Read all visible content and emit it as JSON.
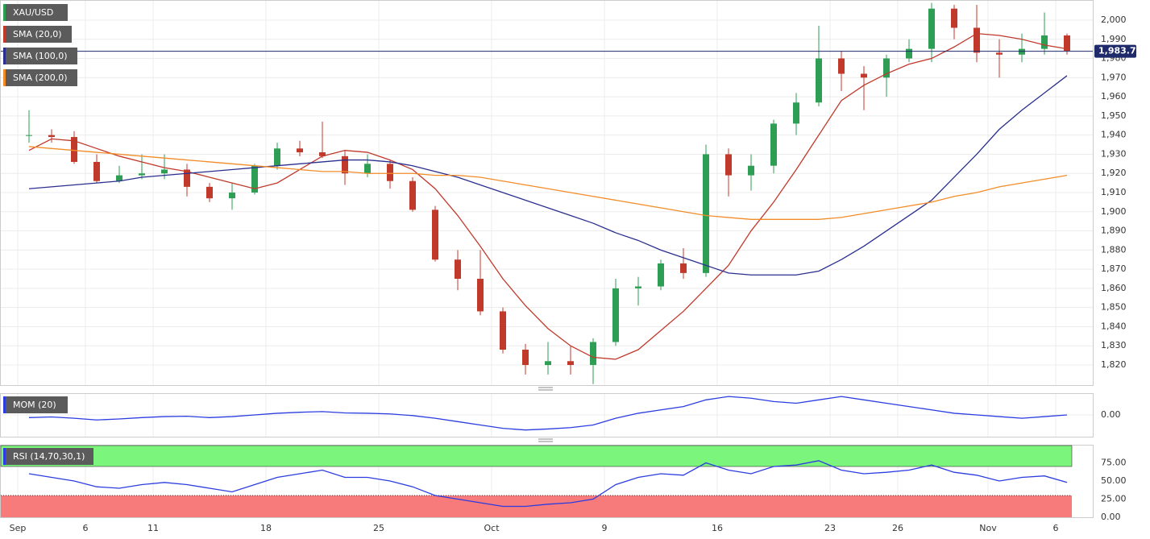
{
  "chart_data": [
    {
      "type": "candlestick",
      "categories": [
        "Sep",
        null,
        null,
        "6",
        null,
        null,
        "11",
        null,
        null,
        null,
        null,
        "18",
        null,
        null,
        null,
        null,
        "25",
        null,
        null,
        null,
        null,
        "Oct",
        null,
        null,
        null,
        null,
        "9",
        null,
        null,
        null,
        null,
        "16",
        null,
        null,
        null,
        null,
        "23",
        null,
        null,
        "26",
        null,
        null,
        null,
        "Nov",
        null,
        null,
        "6"
      ],
      "ylim": [
        1809.5,
        2010.5
      ],
      "yticks": [
        {
          "value": 1820,
          "label": "1,820"
        },
        {
          "value": 1830,
          "label": "1,830"
        },
        {
          "value": 1840,
          "label": "1,840"
        },
        {
          "value": 1850,
          "label": "1,850"
        },
        {
          "value": 1860,
          "label": "1,860"
        },
        {
          "value": 1870,
          "label": "1,870"
        },
        {
          "value": 1880,
          "label": "1,880"
        },
        {
          "value": 1890,
          "label": "1,890"
        },
        {
          "value": 1900,
          "label": "1,900"
        },
        {
          "value": 1910,
          "label": "1,910"
        },
        {
          "value": 1920,
          "label": "1,920"
        },
        {
          "value": 1930,
          "label": "1,930"
        },
        {
          "value": 1940,
          "label": "1,940"
        },
        {
          "value": 1950,
          "label": "1,950"
        },
        {
          "value": 1960,
          "label": "1,960"
        },
        {
          "value": 1970,
          "label": "1,970"
        },
        {
          "value": 1980,
          "label": "1,980"
        },
        {
          "value": 1990,
          "label": "1,990"
        },
        {
          "value": 2000,
          "label": "2,000"
        }
      ],
      "grid": true,
      "last_price": {
        "value": 1983.74,
        "label": "1,983.74",
        "color": "#1f2a6b"
      },
      "series": [
        {
          "name": "XAU/USD",
          "color": "#2f9e55",
          "up_color": "#2f9e55",
          "down_color": "#c0392b",
          "open": [
            1940,
            1940,
            1939,
            1926,
            1916,
            1919,
            1920,
            1922,
            1913,
            1907,
            1910,
            1924,
            1933,
            1931,
            1929,
            1920,
            1925,
            1916,
            1901,
            1875,
            1865,
            1848,
            1828,
            1820,
            1822,
            1820,
            1832,
            1860,
            1861,
            1873,
            1868,
            1930,
            1919,
            1924,
            1946,
            1957,
            1980,
            1972,
            1970,
            1980,
            1985,
            2006,
            1996,
            1983,
            1982,
            1985,
            1992
          ],
          "high": [
            1953,
            1943,
            1942,
            1930,
            1924,
            1930,
            1930,
            1925,
            1915,
            1915,
            1925,
            1936,
            1937,
            1947,
            1932,
            1930,
            1927,
            1918,
            1903,
            1880,
            1880,
            1850,
            1831,
            1832,
            1830,
            1834,
            1865,
            1866,
            1875,
            1881,
            1935,
            1933,
            1930,
            1948,
            1962,
            1997,
            1984,
            1976,
            1982,
            1990,
            2009,
            2008,
            2008,
            1990,
            1993,
            2004,
            1993
          ],
          "low": [
            1936,
            1936,
            1925,
            1915,
            1915,
            1917,
            1917,
            1908,
            1905,
            1901,
            1909,
            1922,
            1929,
            1928,
            1914,
            1918,
            1912,
            1900,
            1874,
            1859,
            1846,
            1826,
            1815,
            1815,
            1815,
            1810,
            1830,
            1851,
            1859,
            1865,
            1866,
            1908,
            1911,
            1920,
            1940,
            1955,
            1963,
            1953,
            1960,
            1978,
            1978,
            1990,
            1978,
            1970,
            1978,
            1982,
            1982
          ],
          "close": [
            1940,
            1939,
            1926,
            1916,
            1919,
            1920,
            1922,
            1913,
            1907,
            1910,
            1924,
            1933,
            1931,
            1929,
            1920,
            1925,
            1916,
            1901,
            1875,
            1865,
            1848,
            1828,
            1820,
            1822,
            1820,
            1832,
            1860,
            1861,
            1873,
            1868,
            1930,
            1919,
            1924,
            1946,
            1957,
            1980,
            1972,
            1970,
            1980,
            1985,
            2006,
            1996,
            1983,
            1982,
            1985,
            1992,
            1984
          ]
        },
        {
          "name": "SMA (20,0)",
          "color": "#c0392b",
          "values": [
            1932,
            1938,
            1937,
            1933,
            1929,
            1926,
            1923,
            1921,
            1918,
            1915,
            1912,
            1915,
            1922,
            1929,
            1932,
            1931,
            1927,
            1922,
            1912,
            1898,
            1882,
            1865,
            1851,
            1839,
            1830,
            1824,
            1823,
            1828,
            1838,
            1848,
            1860,
            1872,
            1890,
            1905,
            1922,
            1940,
            1958,
            1966,
            1972,
            1977,
            1980,
            1986,
            1993,
            1992,
            1990,
            1987,
            1985
          ]
        },
        {
          "name": "SMA (100,0)",
          "color": "#2a2f8f",
          "values": [
            1912,
            1913,
            1914,
            1915,
            1916,
            1918,
            1919,
            1920,
            1921,
            1922,
            1923,
            1924,
            1925,
            1926,
            1927,
            1927,
            1926,
            1924,
            1921,
            1918,
            1914,
            1910,
            1906,
            1902,
            1898,
            1894,
            1889,
            1885,
            1880,
            1876,
            1872,
            1868,
            1867,
            1867,
            1867,
            1869,
            1875,
            1882,
            1890,
            1898,
            1906,
            1918,
            1930,
            1943,
            1953,
            1962,
            1971
          ]
        },
        {
          "name": "SMA (200,0)",
          "color": "#f28c28",
          "values": [
            1934,
            1933,
            1932,
            1931,
            1930,
            1929,
            1928,
            1927,
            1926,
            1925,
            1924,
            1923,
            1922,
            1921,
            1921,
            1920,
            1920,
            1920,
            1919,
            1919,
            1918,
            1916,
            1914,
            1912,
            1910,
            1908,
            1906,
            1904,
            1902,
            1900,
            1898,
            1897,
            1896,
            1896,
            1896,
            1896,
            1897,
            1899,
            1901,
            1903,
            1905,
            1908,
            1910,
            1913,
            1915,
            1917,
            1919
          ]
        }
      ]
    },
    {
      "type": "line",
      "ylim": [
        -65,
        65
      ],
      "yticks": [
        {
          "value": 0,
          "label": "0.00"
        }
      ],
      "series": [
        {
          "name": "MOM (20)",
          "color": "#2b3de0",
          "values": [
            -8,
            -6,
            -10,
            -15,
            -12,
            -8,
            -5,
            -4,
            -8,
            -5,
            0,
            5,
            8,
            10,
            6,
            5,
            3,
            -2,
            -10,
            -20,
            -30,
            -40,
            -45,
            -42,
            -38,
            -30,
            -10,
            5,
            15,
            25,
            45,
            55,
            50,
            40,
            35,
            45,
            55,
            45,
            35,
            25,
            15,
            5,
            0,
            -5,
            -10,
            -5,
            0
          ]
        }
      ]
    },
    {
      "type": "line",
      "ylim": [
        0,
        100
      ],
      "yticks": [
        {
          "value": 0,
          "label": "0.00"
        },
        {
          "value": 25,
          "label": "25.00"
        },
        {
          "value": 50,
          "label": "50.00"
        },
        {
          "value": 75,
          "label": "75.00"
        }
      ],
      "overbought": 70,
      "oversold": 30,
      "overbought_color": "#7cf57c",
      "oversold_color": "#f77b7b",
      "series": [
        {
          "name": "RSI (14,70,30,1)",
          "color": "#2b3de0",
          "values": [
            60,
            55,
            50,
            42,
            40,
            45,
            48,
            45,
            40,
            35,
            45,
            55,
            60,
            65,
            55,
            55,
            50,
            42,
            30,
            25,
            20,
            15,
            15,
            18,
            20,
            25,
            45,
            55,
            60,
            58,
            75,
            65,
            60,
            70,
            72,
            78,
            65,
            60,
            62,
            65,
            72,
            62,
            58,
            50,
            55,
            57,
            48
          ]
        }
      ]
    }
  ]
}
